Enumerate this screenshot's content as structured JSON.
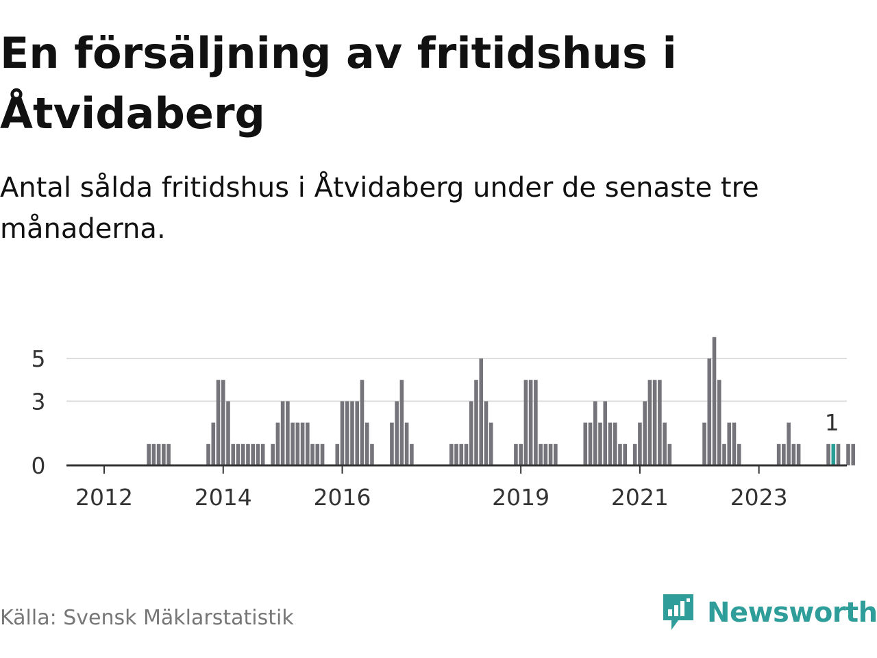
{
  "title": "En försäljning av fritidshus i Åtvidaberg",
  "subtitle": "Antal sålda fritidshus i Åtvidaberg under de senaste tre månaderna.",
  "source": "Källa: Svensk Mäklarstatistik",
  "brand": {
    "name": "Newsworthy",
    "icon": "newsworthy-logo-icon"
  },
  "colors": {
    "bar": "#75747b",
    "highlight": "#2a9d94",
    "grid": "#dddddd",
    "axis": "#333333"
  },
  "chart_data": {
    "type": "bar",
    "title": "En försäljning av fritidshus i Åtvidaberg",
    "subtitle": "Antal sålda fritidshus i Åtvidaberg under de senaste tre månaderna.",
    "xlabel": "",
    "ylabel": "",
    "ylim": [
      0,
      6
    ],
    "yticks": [
      0,
      3,
      5
    ],
    "grid": true,
    "x_start": "2011-11",
    "x_ticks": [
      {
        "label": "2012",
        "month_index": 2
      },
      {
        "label": "2014",
        "month_index": 26
      },
      {
        "label": "2016",
        "month_index": 50
      },
      {
        "label": "2019",
        "month_index": 86
      },
      {
        "label": "2021",
        "month_index": 110
      },
      {
        "label": "2023",
        "month_index": 134
      }
    ],
    "values": [
      0,
      0,
      0,
      0,
      0,
      0,
      0,
      0,
      0,
      0,
      0,
      1,
      1,
      1,
      1,
      1,
      0,
      0,
      0,
      0,
      0,
      0,
      0,
      1,
      2,
      4,
      4,
      3,
      1,
      1,
      1,
      1,
      1,
      1,
      1,
      0,
      1,
      2,
      3,
      3,
      2,
      2,
      2,
      2,
      1,
      1,
      1,
      0,
      0,
      1,
      3,
      3,
      3,
      3,
      4,
      2,
      1,
      0,
      0,
      0,
      2,
      3,
      4,
      2,
      1,
      0,
      0,
      0,
      0,
      0,
      0,
      0,
      1,
      1,
      1,
      1,
      3,
      4,
      5,
      3,
      2,
      0,
      0,
      0,
      0,
      1,
      1,
      4,
      4,
      4,
      1,
      1,
      1,
      1,
      0,
      0,
      0,
      0,
      0,
      2,
      2,
      3,
      2,
      3,
      2,
      2,
      1,
      1,
      0,
      1,
      2,
      3,
      4,
      4,
      4,
      2,
      1,
      0,
      0,
      0,
      0,
      0,
      0,
      2,
      5,
      6,
      4,
      1,
      2,
      2,
      1,
      0,
      0,
      0,
      0,
      0,
      0,
      0,
      1,
      1,
      2,
      1,
      1,
      0,
      0,
      0,
      0,
      0,
      1,
      1,
      1,
      0,
      1,
      1
    ],
    "highlight_index": 149,
    "annotation": "1"
  }
}
